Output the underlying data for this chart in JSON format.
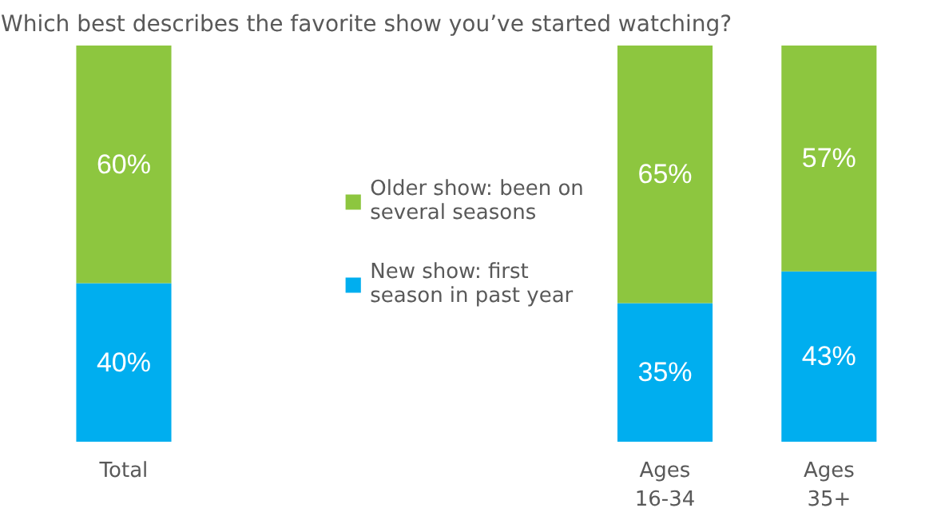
{
  "chart_data": {
    "type": "bar",
    "title": "Which best describes the favorite show you’ve started watching?",
    "categories": [
      "Total",
      "Ages 16-34",
      "Ages 35+"
    ],
    "stacked": true,
    "legend": "center",
    "series": [
      {
        "name": "New show: first season in past year",
        "color": "#00aeef",
        "values": [
          40,
          35,
          43
        ],
        "value_labels": [
          "40%",
          "35%",
          "43%"
        ]
      },
      {
        "name": "Older show: been on several seasons",
        "color": "#8dc63f",
        "values": [
          60,
          65,
          57
        ],
        "value_labels": [
          "60%",
          "65%",
          "57%"
        ]
      }
    ]
  }
}
